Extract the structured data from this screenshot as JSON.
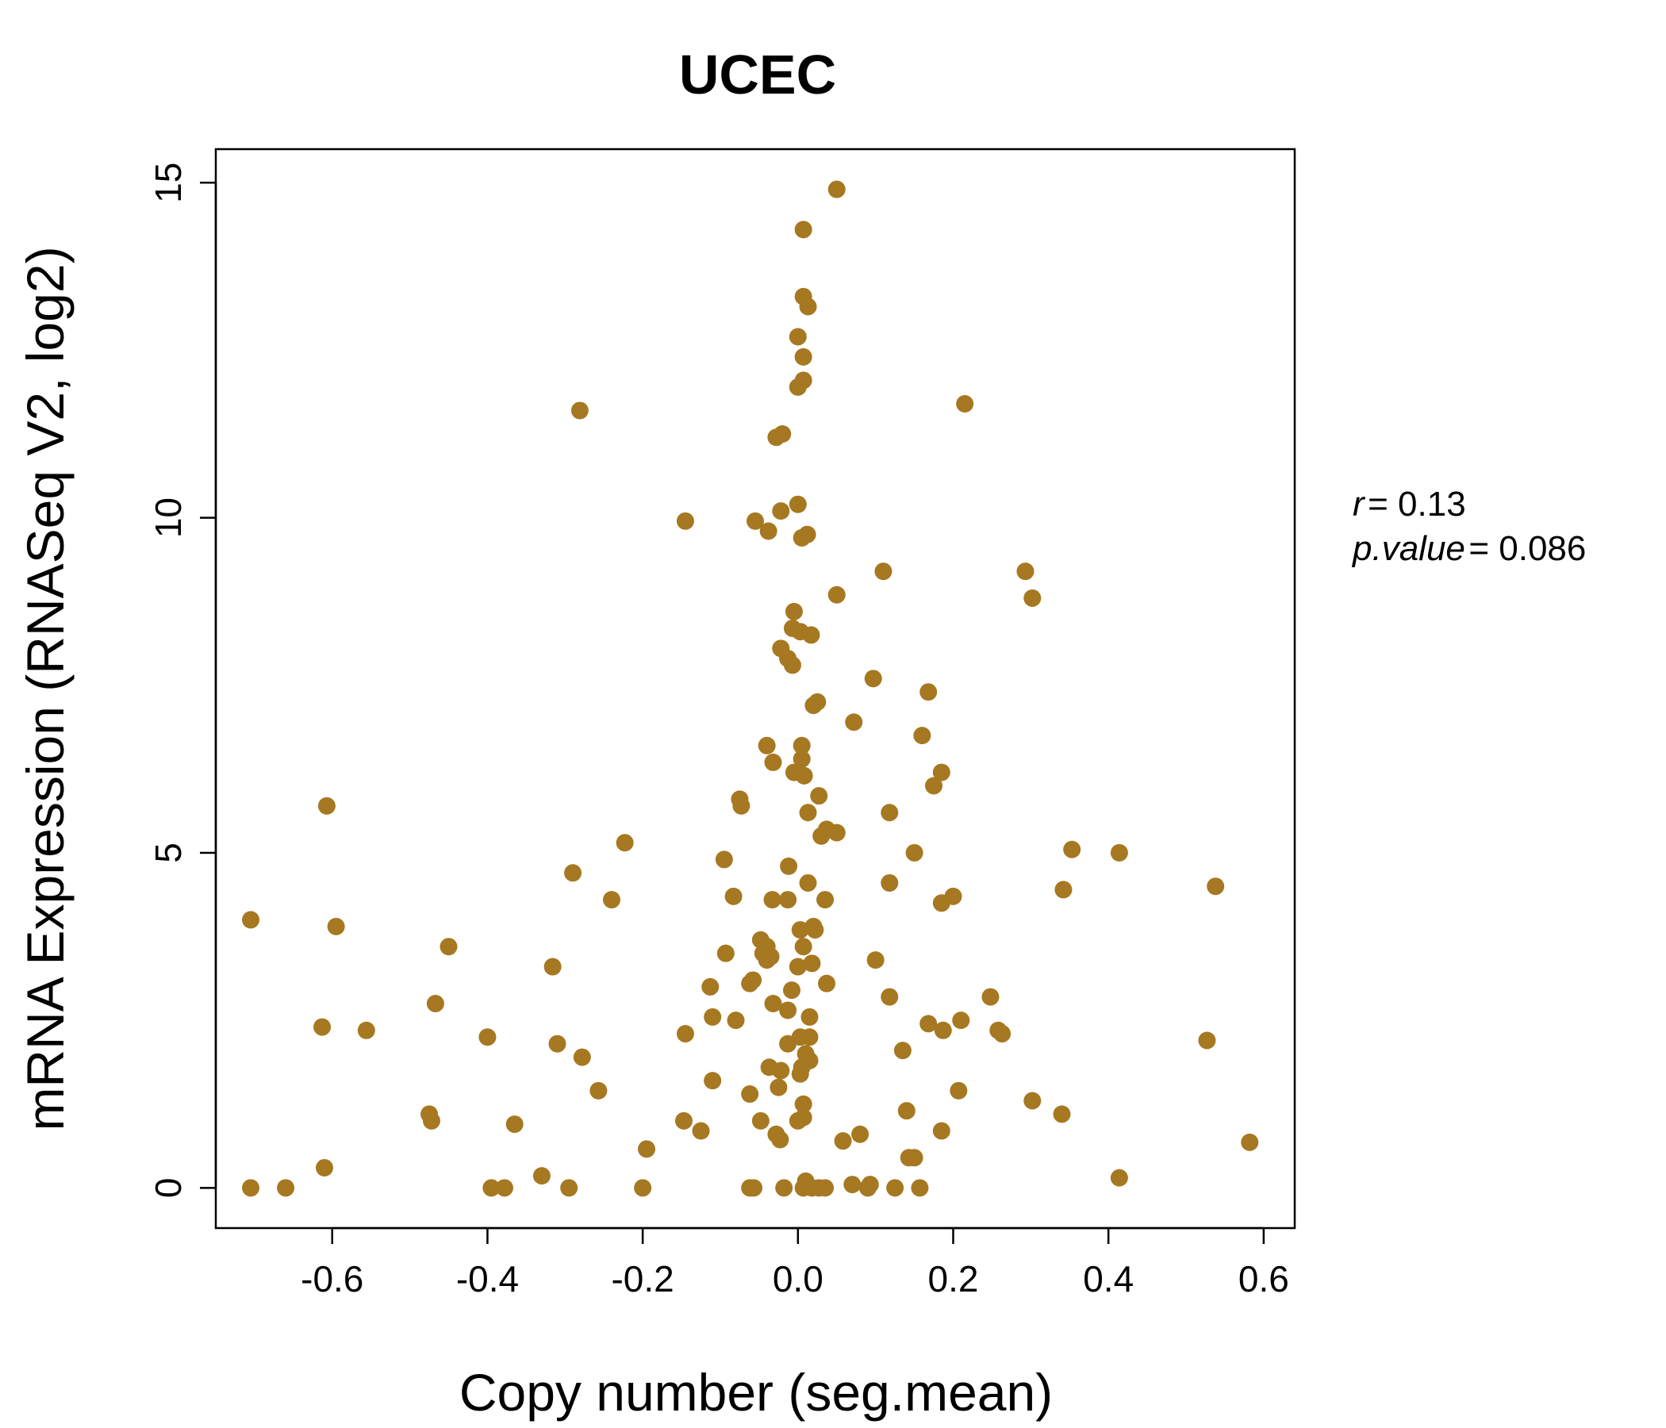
{
  "chart_data": {
    "type": "scatter",
    "title": "UCEC",
    "title_color": "#A67821",
    "point_color": "#A67821",
    "xlabel": "Copy number (seg.mean)",
    "ylabel": "mRNA Expression (RNASeq V2, log2)",
    "xlim": [
      -0.75,
      0.64
    ],
    "ylim": [
      -0.6,
      15.5
    ],
    "x_ticks": [
      -0.6,
      -0.4,
      -0.2,
      0.0,
      0.2,
      0.4,
      0.6
    ],
    "x_tick_labels": [
      "-0.6",
      "-0.4",
      "-0.2",
      "0.0",
      "0.2",
      "0.4",
      "0.6"
    ],
    "y_ticks": [
      0,
      5,
      10,
      15
    ],
    "y_tick_labels": [
      "0",
      "5",
      "10",
      "15"
    ],
    "grid": false,
    "legend": "none",
    "annotations": [
      {
        "label": "r",
        "value": "0.13"
      },
      {
        "label": "p.value",
        "value": "0.086"
      }
    ],
    "points": [
      [
        0.05,
        14.9
      ],
      [
        0.007,
        14.3
      ],
      [
        0.007,
        13.3
      ],
      [
        0.013,
        13.15
      ],
      [
        0.0,
        12.7
      ],
      [
        0.007,
        12.4
      ],
      [
        0.007,
        12.05
      ],
      [
        0.0,
        11.95
      ],
      [
        -0.281,
        11.6
      ],
      [
        0.215,
        11.7
      ],
      [
        -0.028,
        11.2
      ],
      [
        -0.02,
        11.25
      ],
      [
        -0.145,
        9.95
      ],
      [
        -0.055,
        9.95
      ],
      [
        -0.022,
        10.1
      ],
      [
        -0.038,
        9.8
      ],
      [
        0.0,
        10.2
      ],
      [
        0.005,
        9.7
      ],
      [
        0.012,
        9.75
      ],
      [
        0.11,
        9.2
      ],
      [
        0.293,
        9.2
      ],
      [
        0.302,
        8.8
      ],
      [
        0.05,
        8.85
      ],
      [
        -0.005,
        8.6
      ],
      [
        -0.007,
        8.35
      ],
      [
        0.003,
        8.3
      ],
      [
        0.017,
        8.25
      ],
      [
        -0.022,
        8.05
      ],
      [
        -0.013,
        7.9
      ],
      [
        -0.007,
        7.8
      ],
      [
        0.097,
        7.6
      ],
      [
        0.168,
        7.4
      ],
      [
        0.025,
        7.25
      ],
      [
        0.02,
        7.2
      ],
      [
        0.072,
        6.95
      ],
      [
        0.16,
        6.75
      ],
      [
        -0.04,
        6.6
      ],
      [
        0.005,
        6.6
      ],
      [
        0.005,
        6.4
      ],
      [
        -0.032,
        6.35
      ],
      [
        -0.005,
        6.2
      ],
      [
        0.008,
        6.15
      ],
      [
        0.185,
        6.2
      ],
      [
        0.175,
        6.0
      ],
      [
        0.027,
        5.85
      ],
      [
        -0.075,
        5.8
      ],
      [
        -0.073,
        5.7
      ],
      [
        0.013,
        5.6
      ],
      [
        0.118,
        5.6
      ],
      [
        -0.607,
        5.7
      ],
      [
        0.037,
        5.35
      ],
      [
        0.05,
        5.3
      ],
      [
        0.03,
        5.25
      ],
      [
        -0.223,
        5.15
      ],
      [
        0.353,
        5.05
      ],
      [
        0.414,
        5.0
      ],
      [
        0.15,
        5.0
      ],
      [
        -0.095,
        4.9
      ],
      [
        -0.012,
        4.8
      ],
      [
        -0.29,
        4.7
      ],
      [
        0.118,
        4.55
      ],
      [
        0.013,
        4.55
      ],
      [
        0.538,
        4.5
      ],
      [
        0.342,
        4.45
      ],
      [
        -0.24,
        4.3
      ],
      [
        -0.083,
        4.35
      ],
      [
        -0.033,
        4.3
      ],
      [
        -0.013,
        4.3
      ],
      [
        0.035,
        4.3
      ],
      [
        0.2,
        4.35
      ],
      [
        0.185,
        4.25
      ],
      [
        -0.705,
        4.0
      ],
      [
        -0.595,
        3.9
      ],
      [
        0.02,
        3.9
      ],
      [
        0.022,
        3.85
      ],
      [
        0.003,
        3.85
      ],
      [
        -0.048,
        3.7
      ],
      [
        -0.04,
        3.6
      ],
      [
        0.007,
        3.6
      ],
      [
        -0.45,
        3.6
      ],
      [
        -0.045,
        3.5
      ],
      [
        -0.035,
        3.45
      ],
      [
        -0.04,
        3.4
      ],
      [
        -0.093,
        3.5
      ],
      [
        0.1,
        3.4
      ],
      [
        -0.316,
        3.3
      ],
      [
        0.0,
        3.3
      ],
      [
        0.018,
        3.35
      ],
      [
        -0.058,
        3.1
      ],
      [
        -0.062,
        3.05
      ],
      [
        0.037,
        3.05
      ],
      [
        -0.113,
        3.0
      ],
      [
        -0.008,
        2.95
      ],
      [
        0.248,
        2.85
      ],
      [
        0.118,
        2.85
      ],
      [
        -0.467,
        2.75
      ],
      [
        -0.032,
        2.75
      ],
      [
        -0.013,
        2.65
      ],
      [
        0.015,
        2.55
      ],
      [
        -0.11,
        2.55
      ],
      [
        -0.08,
        2.5
      ],
      [
        0.21,
        2.5
      ],
      [
        0.168,
        2.45
      ],
      [
        -0.613,
        2.4
      ],
      [
        -0.556,
        2.35
      ],
      [
        -0.145,
        2.3
      ],
      [
        0.187,
        2.35
      ],
      [
        0.258,
        2.35
      ],
      [
        0.263,
        2.3
      ],
      [
        -0.4,
        2.25
      ],
      [
        0.003,
        2.25
      ],
      [
        0.015,
        2.25
      ],
      [
        -0.013,
        2.15
      ],
      [
        0.527,
        2.2
      ],
      [
        -0.31,
        2.15
      ],
      [
        0.135,
        2.05
      ],
      [
        -0.278,
        1.95
      ],
      [
        0.01,
        2.0
      ],
      [
        0.015,
        1.9
      ],
      [
        0.005,
        1.8
      ],
      [
        -0.037,
        1.8
      ],
      [
        -0.022,
        1.75
      ],
      [
        0.003,
        1.7
      ],
      [
        -0.11,
        1.6
      ],
      [
        -0.025,
        1.5
      ],
      [
        -0.257,
        1.45
      ],
      [
        -0.062,
        1.4
      ],
      [
        0.207,
        1.45
      ],
      [
        0.302,
        1.3
      ],
      [
        0.007,
        1.25
      ],
      [
        0.14,
        1.15
      ],
      [
        0.34,
        1.1
      ],
      [
        -0.475,
        1.1
      ],
      [
        -0.472,
        1.0
      ],
      [
        0.0,
        1.0
      ],
      [
        0.007,
        1.05
      ],
      [
        -0.147,
        1.0
      ],
      [
        -0.048,
        1.0
      ],
      [
        -0.365,
        0.95
      ],
      [
        -0.125,
        0.85
      ],
      [
        -0.028,
        0.8
      ],
      [
        0.08,
        0.8
      ],
      [
        0.185,
        0.85
      ],
      [
        -0.023,
        0.72
      ],
      [
        0.058,
        0.7
      ],
      [
        0.582,
        0.68
      ],
      [
        -0.195,
        0.58
      ],
      [
        0.143,
        0.45
      ],
      [
        0.15,
        0.45
      ],
      [
        -0.61,
        0.3
      ],
      [
        -0.33,
        0.18
      ],
      [
        0.414,
        0.15
      ],
      [
        0.01,
        0.1
      ],
      [
        0.07,
        0.05
      ],
      [
        0.093,
        0.05
      ],
      [
        -0.705,
        0.0
      ],
      [
        -0.66,
        0.0
      ],
      [
        -0.395,
        0.0
      ],
      [
        -0.378,
        0.0
      ],
      [
        -0.295,
        0.0
      ],
      [
        -0.2,
        0.0
      ],
      [
        -0.062,
        0.0
      ],
      [
        -0.057,
        0.0
      ],
      [
        -0.018,
        0.0
      ],
      [
        0.007,
        0.0
      ],
      [
        0.018,
        0.0
      ],
      [
        0.027,
        0.0
      ],
      [
        0.035,
        0.0
      ],
      [
        0.09,
        0.0
      ],
      [
        0.125,
        0.0
      ],
      [
        0.157,
        0.0
      ]
    ]
  }
}
